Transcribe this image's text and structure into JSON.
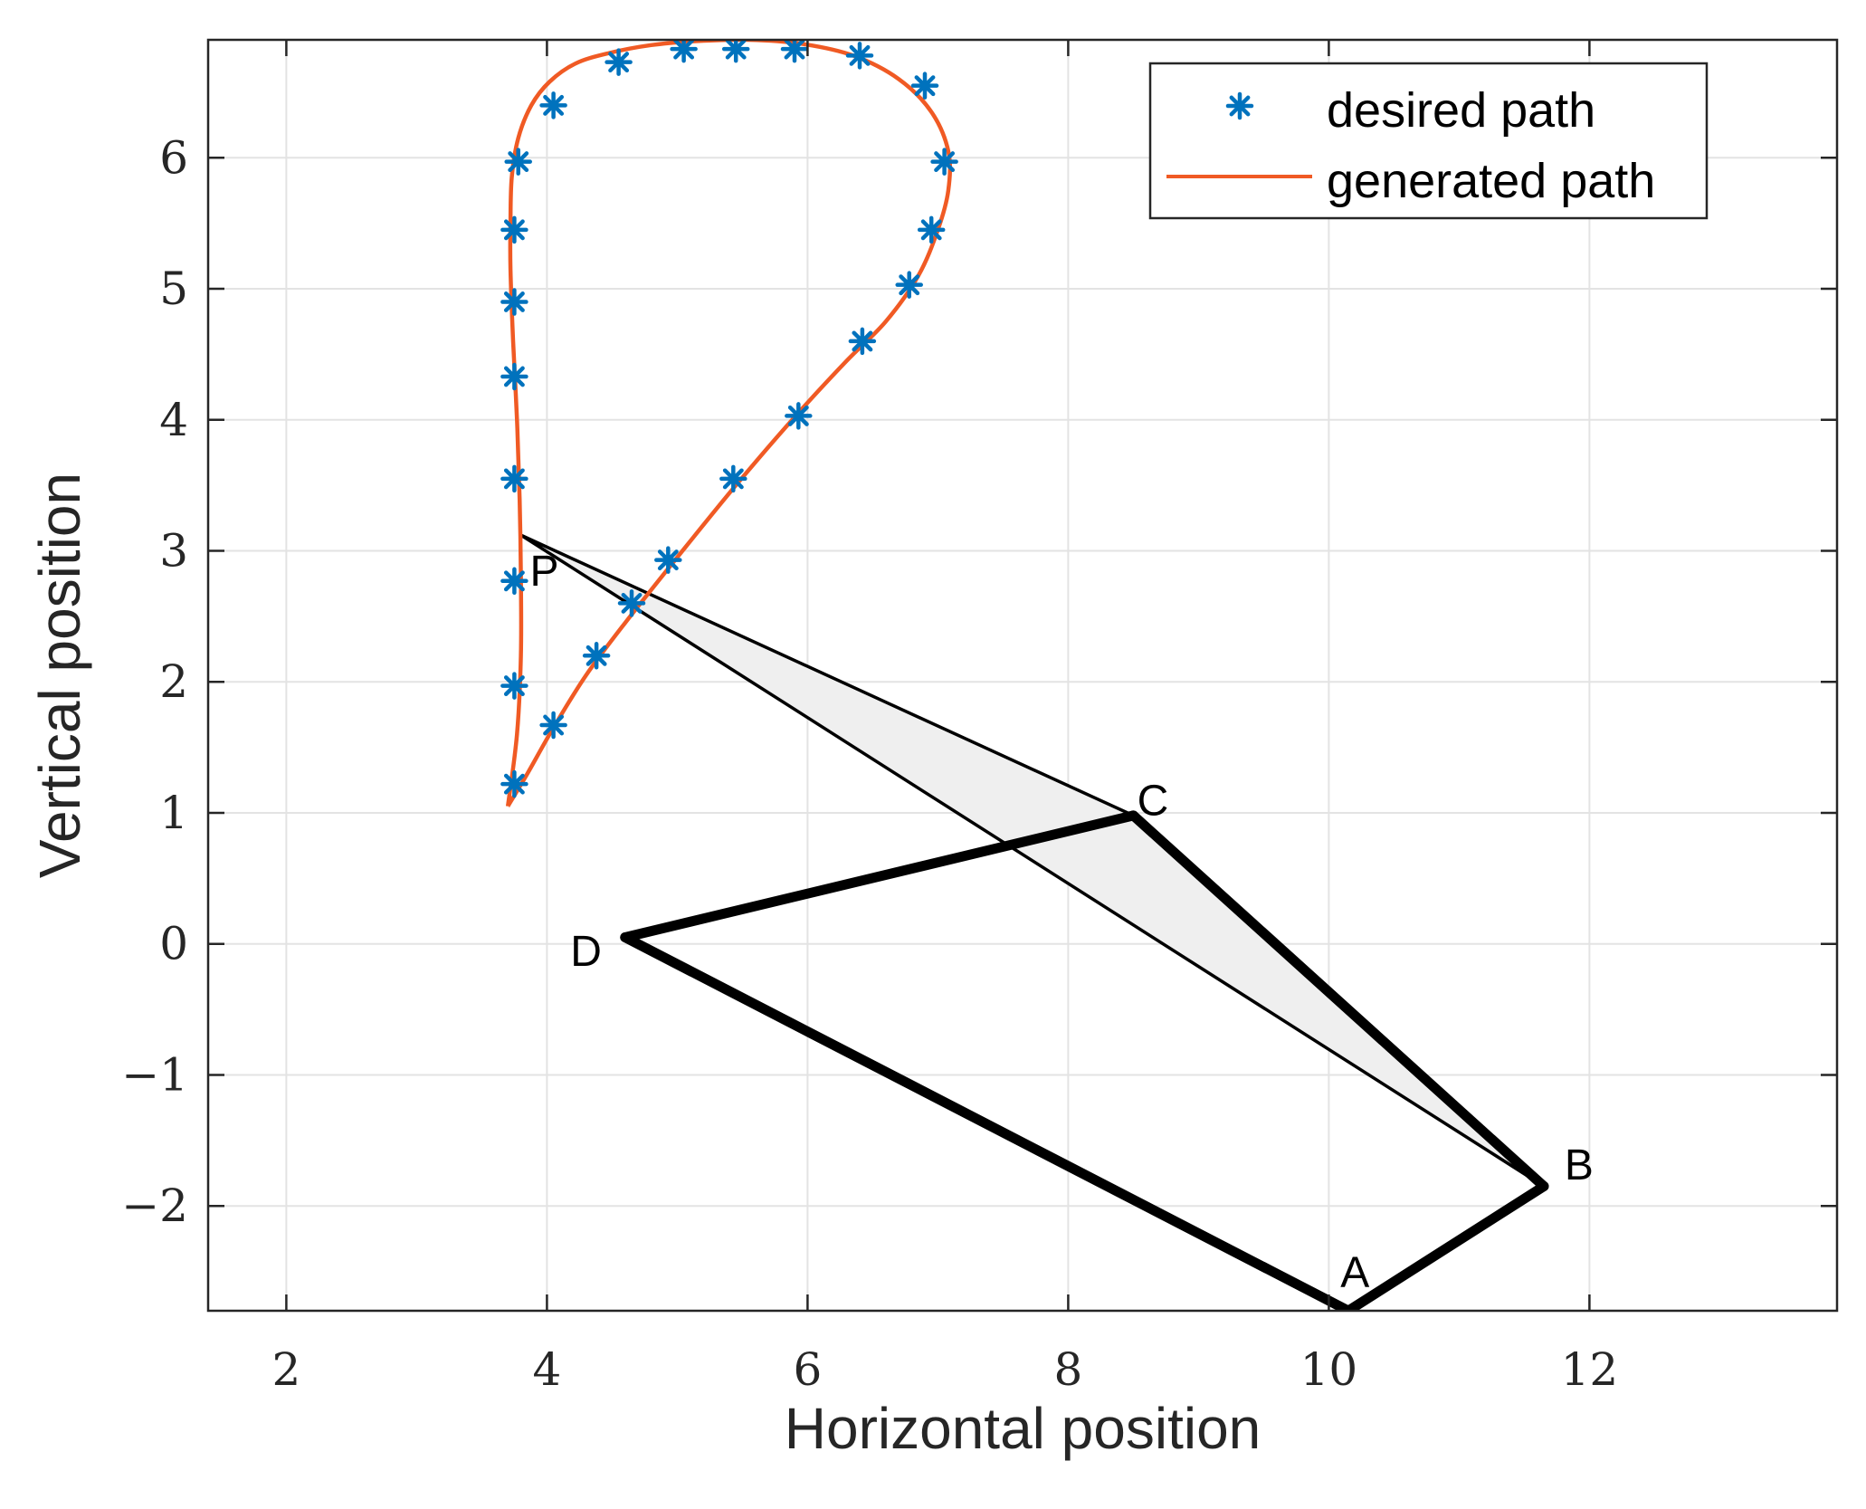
{
  "chart_data": {
    "type": "line",
    "title": "",
    "xlabel": "Horizontal position",
    "ylabel": "Vertical position",
    "xlim": [
      1.4,
      13.9
    ],
    "ylim": [
      -2.8,
      6.9
    ],
    "xticks": [
      2,
      4,
      6,
      8,
      10,
      12
    ],
    "yticks": [
      -2,
      -1,
      0,
      1,
      2,
      3,
      4,
      5,
      6
    ],
    "xtick_labels": [
      "2",
      "4",
      "6",
      "8",
      "10",
      "12"
    ],
    "ytick_labels": [
      "−2",
      "−1",
      "0",
      "1",
      "2",
      "3",
      "4",
      "5",
      "6"
    ],
    "grid": true,
    "legend": {
      "location": "top-right",
      "entries": [
        "desired path",
        "generated path"
      ]
    },
    "colors": {
      "desired": "#0072bd",
      "generated": "#f05a24",
      "linkage": "#000000",
      "coupler_fill": "#efefef",
      "grid": "#e3e3e3",
      "axes": "#262626"
    },
    "series": [
      {
        "name": "desired path",
        "marker": "asterisk",
        "x": [
          3.75,
          3.75,
          3.75,
          3.75,
          3.75,
          3.75,
          3.75,
          3.78,
          4.05,
          4.55,
          5.05,
          5.45,
          5.9,
          6.4,
          6.9,
          7.05,
          6.95,
          6.78,
          6.42,
          5.93,
          5.43,
          4.93,
          4.65,
          4.38,
          4.05
        ],
        "y": [
          1.22,
          1.97,
          2.77,
          3.55,
          4.33,
          4.9,
          5.45,
          5.97,
          6.4,
          6.73,
          6.83,
          6.83,
          6.83,
          6.78,
          6.55,
          5.97,
          5.45,
          5.03,
          4.6,
          4.03,
          3.55,
          2.93,
          2.6,
          2.2,
          1.67
        ]
      },
      {
        "name": "generated path",
        "x": [
          3.7,
          3.77,
          3.8,
          3.8,
          3.79,
          3.77,
          3.74,
          3.72,
          3.72,
          3.73,
          3.78,
          3.88,
          4.02,
          4.22,
          4.48,
          4.8,
          5.15,
          5.55,
          5.95,
          6.35,
          6.7,
          6.95,
          7.08,
          7.08,
          7.0,
          6.85,
          6.6,
          6.3,
          5.9,
          5.45,
          5.0,
          4.6,
          4.3,
          4.05,
          3.85,
          3.7
        ],
        "y": [
          1.05,
          1.6,
          2.2,
          2.8,
          3.4,
          4.0,
          4.6,
          5.15,
          5.5,
          5.85,
          6.15,
          6.4,
          6.58,
          6.72,
          6.8,
          6.86,
          6.89,
          6.9,
          6.87,
          6.78,
          6.6,
          6.35,
          6.05,
          5.75,
          5.45,
          5.1,
          4.75,
          4.45,
          4.02,
          3.5,
          2.95,
          2.45,
          2.05,
          1.65,
          1.3,
          1.05
        ]
      }
    ],
    "linkage": {
      "points": {
        "A": [
          10.15,
          -2.8
        ],
        "B": [
          11.65,
          -1.85
        ],
        "C": [
          8.5,
          0.98
        ],
        "D": [
          4.6,
          0.05
        ],
        "P": [
          3.8,
          3.12
        ]
      },
      "bars": [
        [
          "A",
          "B"
        ],
        [
          "B",
          "C"
        ],
        [
          "C",
          "D"
        ],
        [
          "D",
          "A"
        ]
      ],
      "coupler": [
        "P",
        "C",
        "B"
      ],
      "labels": [
        {
          "text": "A",
          "at": [
            10.2,
            -2.5
          ]
        },
        {
          "text": "B",
          "at": [
            11.92,
            -1.68
          ]
        },
        {
          "text": "C",
          "at": [
            8.65,
            1.1
          ]
        },
        {
          "text": "D",
          "at": [
            4.3,
            -0.05
          ]
        },
        {
          "text": "P",
          "at": [
            3.98,
            2.85
          ]
        }
      ]
    }
  }
}
